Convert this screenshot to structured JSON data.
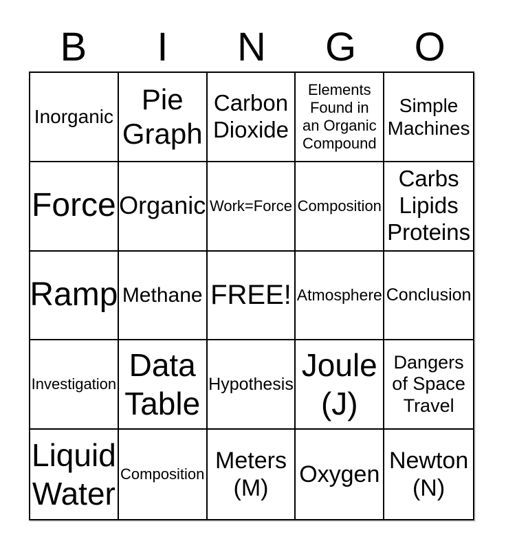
{
  "page": {
    "background_color": "#ffffff",
    "border_color": "#000000",
    "text_color": "#000000"
  },
  "header": {
    "letters": [
      "B",
      "I",
      "N",
      "G",
      "O"
    ]
  },
  "card": {
    "free_space_label": "FREE!",
    "rows": [
      {
        "cells": [
          {
            "text": "Inorganic"
          },
          {
            "text": "Pie\nGraph"
          },
          {
            "text": "Carbon\nDioxide"
          },
          {
            "text": "Elements\nFound in\nan Organic\nCompound"
          },
          {
            "text": "Simple\nMachines"
          }
        ]
      },
      {
        "cells": [
          {
            "text": "Force"
          },
          {
            "text": "Organic"
          },
          {
            "text": "Work=Force"
          },
          {
            "text": "Composition"
          },
          {
            "text": "Carbs\nLipids\nProteins"
          }
        ]
      },
      {
        "cells": [
          {
            "text": "Ramp"
          },
          {
            "text": "Methane"
          },
          {
            "text": "FREE!"
          },
          {
            "text": "Atmosphere"
          },
          {
            "text": "Conclusion"
          }
        ]
      },
      {
        "cells": [
          {
            "text": "Investigation"
          },
          {
            "text": "Data\nTable"
          },
          {
            "text": "Hypothesis"
          },
          {
            "text": "Joule\n(J)"
          },
          {
            "text": "Dangers\nof Space\nTravel"
          }
        ]
      },
      {
        "cells": [
          {
            "text": "Liquid\nWater"
          },
          {
            "text": "Composition"
          },
          {
            "text": "Meters\n(M)"
          },
          {
            "text": "Oxygen"
          },
          {
            "text": "Newton\n(N)"
          }
        ]
      }
    ]
  }
}
